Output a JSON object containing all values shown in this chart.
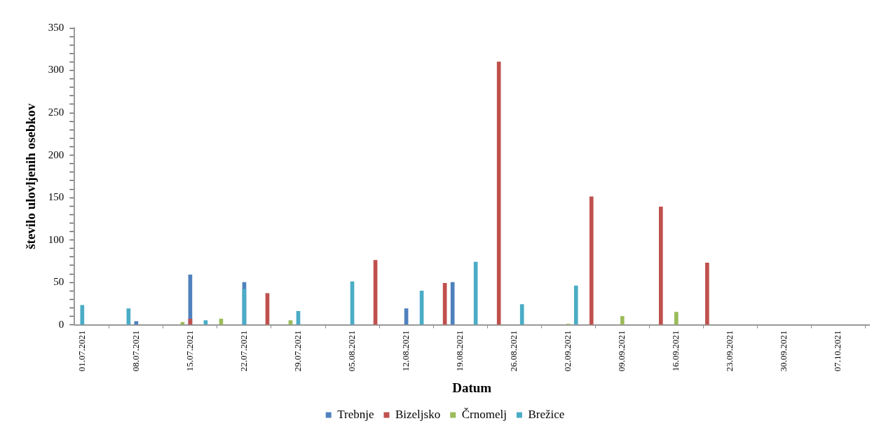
{
  "chart_data": {
    "type": "bar",
    "xlabel": "Datum",
    "ylabel": "število ulovljenih osebkov",
    "xlim": [
      "2021-06-30",
      "2021-10-11"
    ],
    "xticks": [
      {
        "value": "2021-07-01",
        "label": "01.07.2021"
      },
      {
        "value": "2021-07-08",
        "label": "08.07.2021"
      },
      {
        "value": "2021-07-15",
        "label": "15.07.2021"
      },
      {
        "value": "2021-07-22",
        "label": "22.07.2021"
      },
      {
        "value": "2021-07-29",
        "label": "29.07.2021"
      },
      {
        "value": "2021-08-05",
        "label": "05.08.2021"
      },
      {
        "value": "2021-08-12",
        "label": "12.08.2021"
      },
      {
        "value": "2021-08-19",
        "label": "19.08.2021"
      },
      {
        "value": "2021-08-26",
        "label": "26.08.2021"
      },
      {
        "value": "2021-09-02",
        "label": "02.09.2021"
      },
      {
        "value": "2021-09-09",
        "label": "09.09.2021"
      },
      {
        "value": "2021-09-16",
        "label": "16.09.2021"
      },
      {
        "value": "2021-09-23",
        "label": "23.09.2021"
      },
      {
        "value": "2021-09-30",
        "label": "30.09.2021"
      },
      {
        "value": "2021-10-07",
        "label": "07.10.2021"
      }
    ],
    "ylim": [
      0,
      350
    ],
    "yticks": [
      0,
      {
        "value": 10,
        "label": null
      },
      {
        "value": 20,
        "label": null
      },
      {
        "value": 30,
        "label": null
      },
      {
        "value": 40,
        "label": null
      },
      50,
      {
        "value": 60,
        "label": null
      },
      {
        "value": 70,
        "label": null
      },
      {
        "value": 80,
        "label": null
      },
      {
        "value": 90,
        "label": null
      },
      100,
      {
        "value": 110,
        "label": null
      },
      {
        "value": 120,
        "label": null
      },
      {
        "value": 130,
        "label": null
      },
      {
        "value": 140,
        "label": null
      },
      150,
      {
        "value": 160,
        "label": null
      },
      {
        "value": 170,
        "label": null
      },
      {
        "value": 180,
        "label": null
      },
      {
        "value": 190,
        "label": null
      },
      200,
      {
        "value": 210,
        "label": null
      },
      {
        "value": 220,
        "label": null
      },
      {
        "value": 230,
        "label": null
      },
      {
        "value": 240,
        "label": null
      },
      250,
      {
        "value": 260,
        "label": null
      },
      {
        "value": 270,
        "label": null
      },
      {
        "value": 280,
        "label": null
      },
      {
        "value": 290,
        "label": null
      },
      300,
      {
        "value": 310,
        "label": null
      },
      {
        "value": 320,
        "label": null
      },
      {
        "value": 330,
        "label": null
      },
      {
        "value": 340,
        "label": null
      },
      350
    ],
    "grid": false,
    "legend": "bottom",
    "series": [
      {
        "name": "Trebnje",
        "color": "#4f81bd",
        "x": [
          "2021-07-08",
          "2021-07-15",
          "2021-07-22",
          "2021-08-12",
          "2021-08-18"
        ],
        "values": [
          4,
          59,
          50,
          19,
          50
        ]
      },
      {
        "name": "Bizeljsko",
        "color": "#c0504d",
        "x": [
          "2021-07-15",
          "2021-07-25",
          "2021-08-08",
          "2021-08-17",
          "2021-08-24",
          "2021-09-05",
          "2021-09-14",
          "2021-09-20"
        ],
        "values": [
          7,
          37,
          76,
          49,
          310,
          151,
          139,
          73
        ]
      },
      {
        "name": "Črnomelj",
        "color": "#9bbb59",
        "x": [
          "2021-07-14",
          "2021-07-19",
          "2021-07-28",
          "2021-09-02",
          "2021-09-09",
          "2021-09-16"
        ],
        "values": [
          3,
          7,
          5,
          1,
          10,
          15
        ]
      },
      {
        "name": "Brežice",
        "color": "#4bacc6",
        "x": [
          "2021-07-01",
          "2021-07-07",
          "2021-07-17",
          "2021-07-22",
          "2021-07-29",
          "2021-08-05",
          "2021-08-14",
          "2021-08-21",
          "2021-08-27",
          "2021-09-03"
        ],
        "values": [
          23,
          19,
          5,
          42,
          16,
          51,
          40,
          74,
          24,
          46
        ]
      }
    ]
  }
}
